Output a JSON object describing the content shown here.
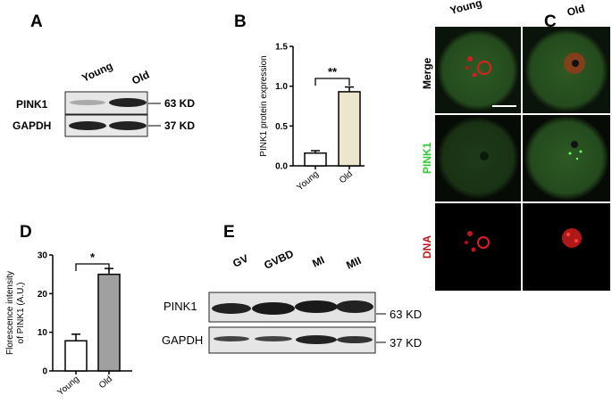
{
  "panel_labels": {
    "a": "A",
    "b": "B",
    "c": "C",
    "d": "D",
    "e": "E"
  },
  "panel_a": {
    "lanes": [
      "Young",
      "Old"
    ],
    "rows": [
      "PINK1",
      "GAPDH"
    ],
    "markers": [
      "63 KD",
      "37 KD"
    ]
  },
  "panel_c": {
    "columns": [
      "Young",
      "Old"
    ],
    "rows": [
      "Merge",
      "PINK1",
      "DNA"
    ],
    "row_colors": [
      "#000000",
      "#2ecc2e",
      "#c0181c"
    ]
  },
  "panel_e": {
    "lanes": [
      "GV",
      "GVBD",
      "MI",
      "MII"
    ],
    "rows": [
      "PINK1",
      "GAPDH"
    ],
    "markers": [
      "63 KD",
      "37 KD"
    ]
  },
  "chart_data": [
    {
      "type": "bar",
      "panel": "B",
      "categories": [
        "Young",
        "Old"
      ],
      "values": [
        0.16,
        0.93
      ],
      "errors": [
        0.03,
        0.06
      ],
      "colors": [
        "#ffffff",
        "#ece6cc"
      ],
      "ylabel": "PINK1 protein expression",
      "ylim": [
        0,
        1.5
      ],
      "yticks": [
        "0.0",
        "0.5",
        "1.0",
        "1.5"
      ],
      "significance": "**"
    },
    {
      "type": "bar",
      "panel": "D",
      "categories": [
        "Young",
        "Old"
      ],
      "values": [
        7.8,
        25
      ],
      "errors": [
        1.7,
        1.5
      ],
      "colors": [
        "#ffffff",
        "#a0a0a0"
      ],
      "ylabel": "Florescence intensity of PINK1 (A.U.)",
      "ylabel_lines": [
        "Florescence intensity",
        "of PINK1 (A.U.)"
      ],
      "ylim": [
        0,
        30
      ],
      "yticks": [
        "0",
        "10",
        "20",
        "30"
      ],
      "significance": "*"
    }
  ]
}
